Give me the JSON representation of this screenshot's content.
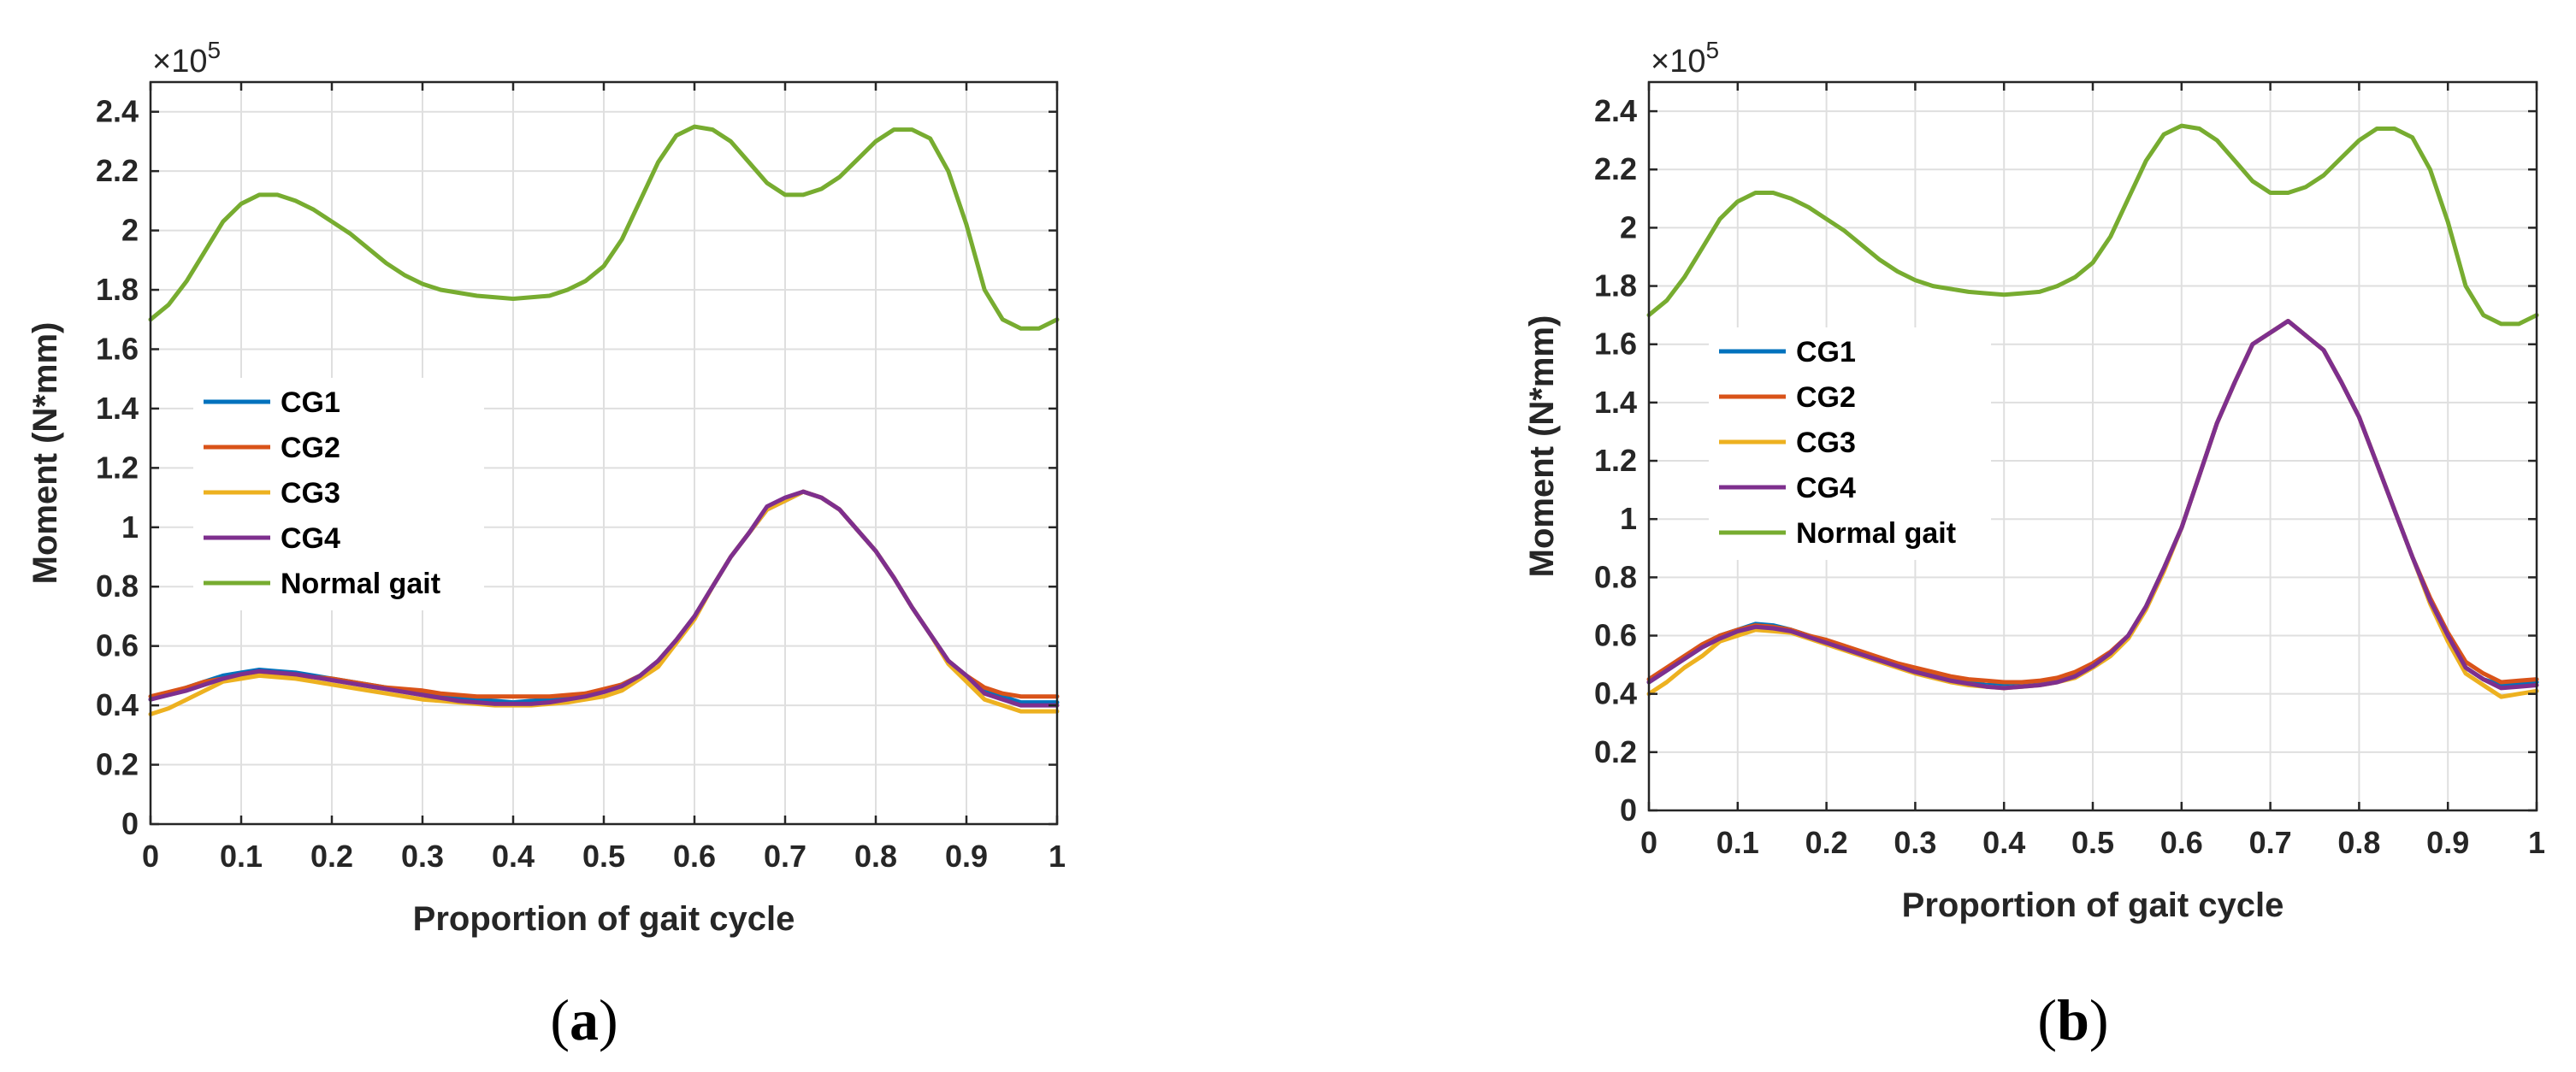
{
  "colors": {
    "CG1": "#0072bd",
    "CG2": "#d95319",
    "CG3": "#edb120",
    "CG4": "#7e2f8e",
    "Normal gait": "#77ac30"
  },
  "chart_data": [
    {
      "type": "line",
      "panel": "a",
      "caption_open": "(",
      "caption_letter": "a",
      "caption_close": ")",
      "title": "",
      "xlabel": "Proportion of gait cycle",
      "ylabel": "Moment (N*mm)",
      "y_exponent_base": "×10",
      "y_exponent_power": "5",
      "xlim": [
        0,
        1
      ],
      "ylim": [
        0,
        2.5
      ],
      "x_ticks": [
        "0",
        "0.1",
        "0.2",
        "0.3",
        "0.4",
        "0.5",
        "0.6",
        "0.7",
        "0.8",
        "0.9",
        "1"
      ],
      "y_ticks": [
        "0",
        "0.2",
        "0.4",
        "0.6",
        "0.8",
        "1",
        "1.2",
        "1.4",
        "1.6",
        "1.8",
        "2",
        "2.2",
        "2.4"
      ],
      "grid": true,
      "legend_position": "middle-left",
      "x": [
        0,
        0.02,
        0.04,
        0.06,
        0.08,
        0.1,
        0.12,
        0.14,
        0.16,
        0.18,
        0.2,
        0.22,
        0.24,
        0.26,
        0.28,
        0.3,
        0.32,
        0.34,
        0.36,
        0.38,
        0.4,
        0.42,
        0.44,
        0.46,
        0.48,
        0.5,
        0.52,
        0.54,
        0.56,
        0.58,
        0.6,
        0.62,
        0.64,
        0.66,
        0.68,
        0.7,
        0.72,
        0.74,
        0.76,
        0.78,
        0.8,
        0.82,
        0.84,
        0.86,
        0.88,
        0.9,
        0.92,
        0.94,
        0.96,
        0.98,
        1
      ],
      "series": [
        {
          "name": "CG1",
          "values": [
            0.42,
            0.44,
            0.46,
            0.48,
            0.5,
            0.51,
            0.52,
            0.515,
            0.51,
            0.5,
            0.49,
            0.48,
            0.47,
            0.46,
            0.45,
            0.44,
            0.43,
            0.425,
            0.42,
            0.415,
            0.41,
            0.415,
            0.42,
            0.43,
            0.44,
            0.45,
            0.47,
            0.5,
            0.55,
            0.62,
            0.7,
            0.8,
            0.9,
            0.98,
            1.06,
            1.09,
            1.12,
            1.1,
            1.06,
            0.99,
            0.92,
            0.83,
            0.73,
            0.64,
            0.55,
            0.5,
            0.45,
            0.43,
            0.41,
            0.41,
            0.41
          ]
        },
        {
          "name": "CG2",
          "values": [
            0.43,
            0.445,
            0.46,
            0.48,
            0.49,
            0.5,
            0.51,
            0.505,
            0.5,
            0.495,
            0.49,
            0.48,
            0.47,
            0.46,
            0.455,
            0.45,
            0.44,
            0.435,
            0.43,
            0.43,
            0.43,
            0.43,
            0.43,
            0.435,
            0.44,
            0.455,
            0.47,
            0.5,
            0.55,
            0.62,
            0.7,
            0.8,
            0.9,
            0.98,
            1.06,
            1.09,
            1.12,
            1.1,
            1.06,
            0.99,
            0.92,
            0.83,
            0.73,
            0.64,
            0.55,
            0.5,
            0.46,
            0.44,
            0.43,
            0.43,
            0.43
          ]
        },
        {
          "name": "CG3",
          "values": [
            0.37,
            0.39,
            0.42,
            0.45,
            0.48,
            0.49,
            0.5,
            0.495,
            0.49,
            0.48,
            0.47,
            0.46,
            0.45,
            0.44,
            0.43,
            0.42,
            0.415,
            0.41,
            0.405,
            0.4,
            0.4,
            0.4,
            0.405,
            0.41,
            0.42,
            0.43,
            0.45,
            0.49,
            0.53,
            0.61,
            0.69,
            0.8,
            0.9,
            0.98,
            1.06,
            1.09,
            1.12,
            1.1,
            1.06,
            0.99,
            0.92,
            0.83,
            0.73,
            0.64,
            0.54,
            0.48,
            0.42,
            0.4,
            0.38,
            0.38,
            0.38
          ]
        },
        {
          "name": "CG4",
          "values": [
            0.42,
            0.435,
            0.45,
            0.47,
            0.49,
            0.505,
            0.515,
            0.51,
            0.505,
            0.495,
            0.485,
            0.475,
            0.465,
            0.455,
            0.445,
            0.435,
            0.425,
            0.415,
            0.41,
            0.405,
            0.405,
            0.405,
            0.41,
            0.42,
            0.43,
            0.445,
            0.465,
            0.5,
            0.55,
            0.62,
            0.7,
            0.8,
            0.9,
            0.98,
            1.07,
            1.1,
            1.12,
            1.1,
            1.06,
            0.99,
            0.92,
            0.83,
            0.73,
            0.64,
            0.55,
            0.5,
            0.44,
            0.42,
            0.4,
            0.4,
            0.4
          ]
        },
        {
          "name": "Normal gait",
          "values": [
            1.7,
            1.75,
            1.83,
            1.93,
            2.03,
            2.09,
            2.12,
            2.12,
            2.1,
            2.07,
            2.03,
            1.99,
            1.94,
            1.89,
            1.85,
            1.82,
            1.8,
            1.79,
            1.78,
            1.775,
            1.77,
            1.775,
            1.78,
            1.8,
            1.83,
            1.88,
            1.97,
            2.1,
            2.23,
            2.32,
            2.35,
            2.34,
            2.3,
            2.23,
            2.16,
            2.12,
            2.12,
            2.14,
            2.18,
            2.24,
            2.3,
            2.34,
            2.34,
            2.31,
            2.2,
            2.02,
            1.8,
            1.7,
            1.67,
            1.67,
            1.7
          ]
        }
      ]
    },
    {
      "type": "line",
      "panel": "b",
      "caption_open": "(",
      "caption_letter": "b",
      "caption_close": ")",
      "title": "",
      "xlabel": "Proportion of gait cycle",
      "ylabel": "Moment (N*mm)",
      "y_exponent_base": "×10",
      "y_exponent_power": "5",
      "xlim": [
        0,
        1
      ],
      "ylim": [
        0,
        2.5
      ],
      "x_ticks": [
        "0",
        "0.1",
        "0.2",
        "0.3",
        "0.4",
        "0.5",
        "0.6",
        "0.7",
        "0.8",
        "0.9",
        "1"
      ],
      "y_ticks": [
        "0",
        "0.2",
        "0.4",
        "0.6",
        "0.8",
        "1",
        "1.2",
        "1.4",
        "1.6",
        "1.8",
        "2",
        "2.2",
        "2.4"
      ],
      "grid": true,
      "legend_position": "middle-left",
      "x": [
        0,
        0.02,
        0.04,
        0.06,
        0.08,
        0.1,
        0.12,
        0.14,
        0.16,
        0.18,
        0.2,
        0.22,
        0.24,
        0.26,
        0.28,
        0.3,
        0.32,
        0.34,
        0.36,
        0.38,
        0.4,
        0.42,
        0.44,
        0.46,
        0.48,
        0.5,
        0.52,
        0.54,
        0.56,
        0.58,
        0.6,
        0.62,
        0.64,
        0.66,
        0.68,
        0.7,
        0.72,
        0.74,
        0.76,
        0.78,
        0.8,
        0.82,
        0.84,
        0.86,
        0.88,
        0.9,
        0.92,
        0.94,
        0.96,
        0.98,
        1
      ],
      "series": [
        {
          "name": "CG1",
          "values": [
            0.44,
            0.48,
            0.52,
            0.56,
            0.6,
            0.62,
            0.64,
            0.635,
            0.62,
            0.6,
            0.58,
            0.56,
            0.54,
            0.52,
            0.5,
            0.48,
            0.465,
            0.45,
            0.44,
            0.43,
            0.43,
            0.435,
            0.44,
            0.45,
            0.47,
            0.5,
            0.54,
            0.6,
            0.7,
            0.83,
            0.97,
            1.15,
            1.33,
            1.47,
            1.6,
            1.64,
            1.68,
            1.63,
            1.58,
            1.47,
            1.35,
            1.19,
            1.03,
            0.87,
            0.72,
            0.6,
            0.49,
            0.45,
            0.43,
            0.435,
            0.44
          ]
        },
        {
          "name": "CG2",
          "values": [
            0.45,
            0.49,
            0.53,
            0.57,
            0.6,
            0.62,
            0.635,
            0.63,
            0.62,
            0.6,
            0.585,
            0.565,
            0.545,
            0.525,
            0.505,
            0.49,
            0.475,
            0.46,
            0.45,
            0.445,
            0.44,
            0.44,
            0.445,
            0.455,
            0.475,
            0.505,
            0.545,
            0.6,
            0.7,
            0.83,
            0.97,
            1.15,
            1.33,
            1.47,
            1.6,
            1.64,
            1.68,
            1.63,
            1.58,
            1.47,
            1.35,
            1.19,
            1.03,
            0.87,
            0.73,
            0.61,
            0.51,
            0.47,
            0.44,
            0.445,
            0.45
          ]
        },
        {
          "name": "CG3",
          "values": [
            0.4,
            0.44,
            0.49,
            0.53,
            0.58,
            0.6,
            0.62,
            0.615,
            0.61,
            0.59,
            0.57,
            0.55,
            0.53,
            0.51,
            0.49,
            0.47,
            0.455,
            0.44,
            0.43,
            0.425,
            0.42,
            0.425,
            0.43,
            0.44,
            0.455,
            0.49,
            0.53,
            0.59,
            0.69,
            0.82,
            0.97,
            1.15,
            1.33,
            1.47,
            1.6,
            1.64,
            1.68,
            1.63,
            1.58,
            1.47,
            1.35,
            1.19,
            1.03,
            0.87,
            0.71,
            0.58,
            0.47,
            0.43,
            0.39,
            0.4,
            0.41
          ]
        },
        {
          "name": "CG4",
          "values": [
            0.44,
            0.48,
            0.52,
            0.56,
            0.59,
            0.615,
            0.63,
            0.625,
            0.615,
            0.595,
            0.575,
            0.555,
            0.535,
            0.515,
            0.495,
            0.475,
            0.46,
            0.445,
            0.435,
            0.425,
            0.42,
            0.425,
            0.43,
            0.44,
            0.46,
            0.495,
            0.54,
            0.6,
            0.7,
            0.83,
            0.97,
            1.15,
            1.33,
            1.47,
            1.6,
            1.64,
            1.68,
            1.63,
            1.58,
            1.47,
            1.35,
            1.19,
            1.03,
            0.87,
            0.72,
            0.6,
            0.49,
            0.45,
            0.42,
            0.425,
            0.43
          ]
        },
        {
          "name": "Normal gait",
          "values": [
            1.7,
            1.75,
            1.83,
            1.93,
            2.03,
            2.09,
            2.12,
            2.12,
            2.1,
            2.07,
            2.03,
            1.99,
            1.94,
            1.89,
            1.85,
            1.82,
            1.8,
            1.79,
            1.78,
            1.775,
            1.77,
            1.775,
            1.78,
            1.8,
            1.83,
            1.88,
            1.97,
            2.1,
            2.23,
            2.32,
            2.35,
            2.34,
            2.3,
            2.23,
            2.16,
            2.12,
            2.12,
            2.14,
            2.18,
            2.24,
            2.3,
            2.34,
            2.34,
            2.31,
            2.2,
            2.02,
            1.8,
            1.7,
            1.67,
            1.67,
            1.7
          ]
        }
      ]
    }
  ]
}
